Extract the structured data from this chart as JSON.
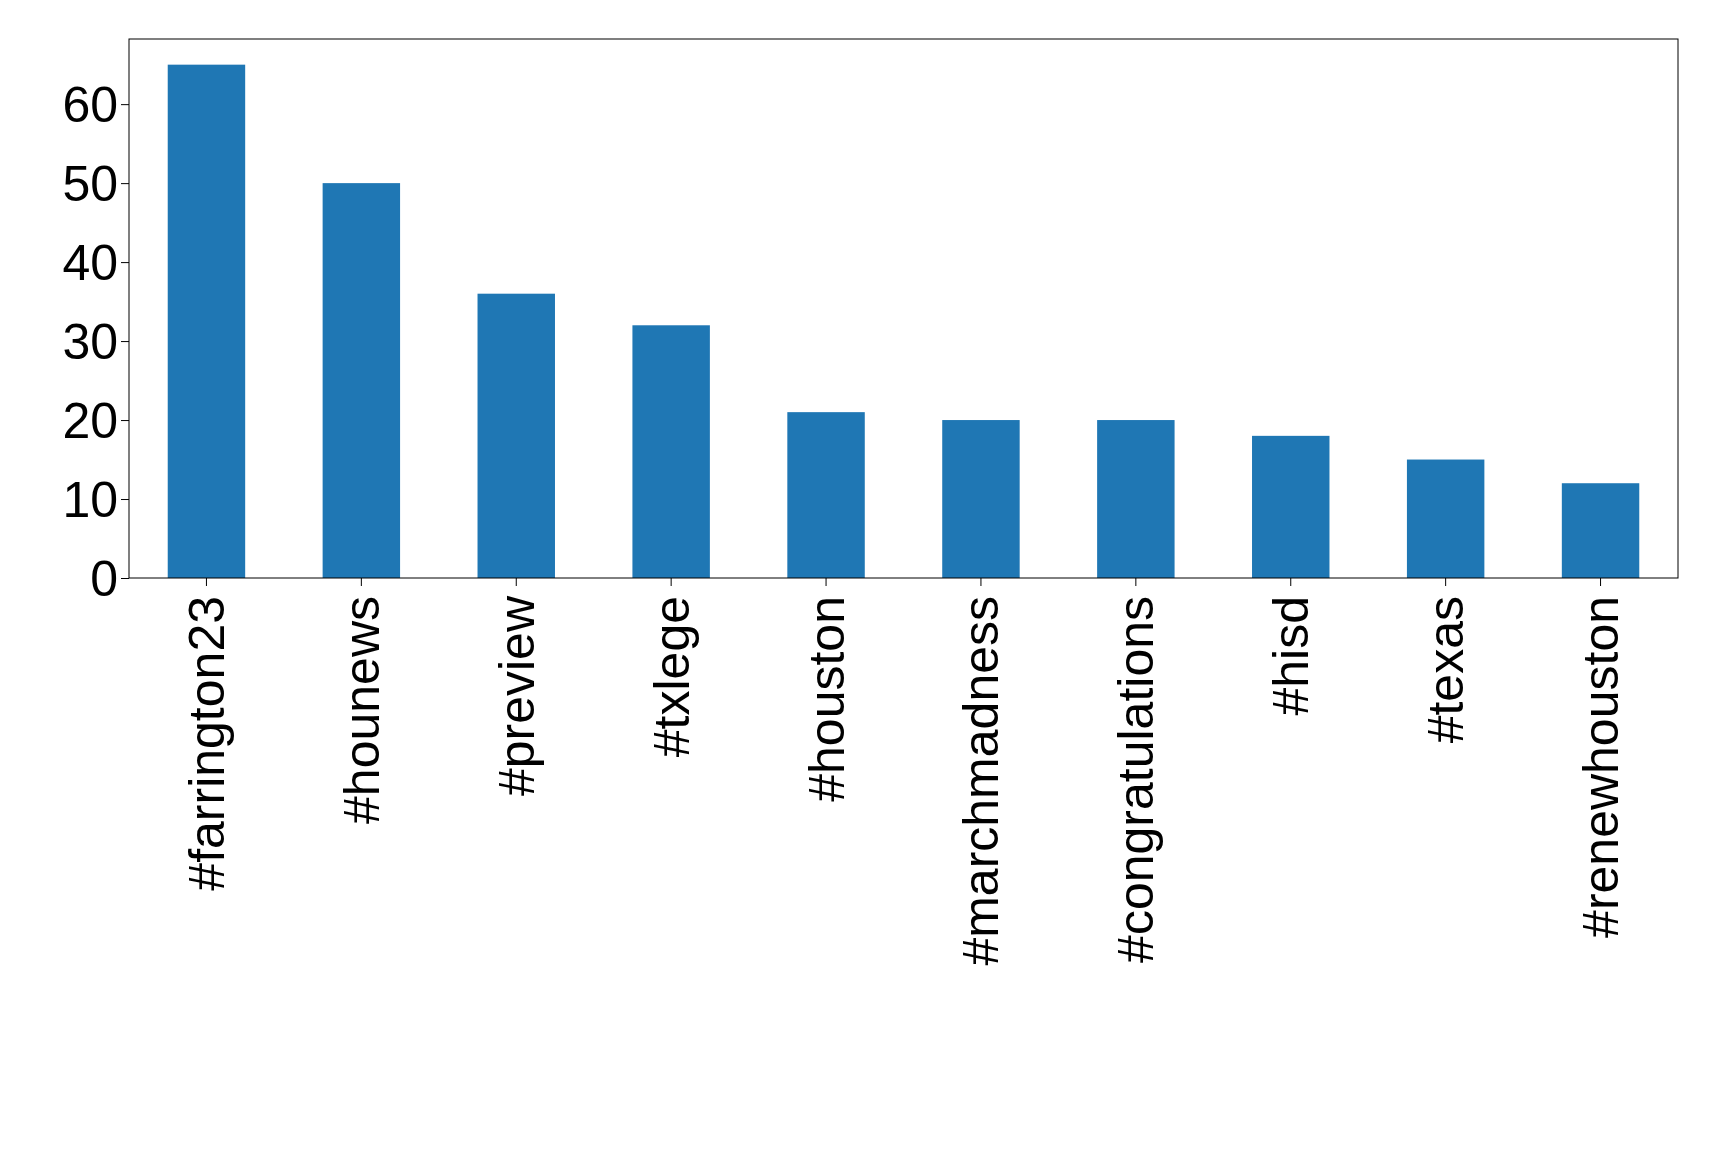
{
  "chart_data": {
    "type": "bar",
    "categories": [
      "#farrington23",
      "#hounews",
      "#preview",
      "#txlege",
      "#houston",
      "#marchmadness",
      "#congratulations",
      "#hisd",
      "#texas",
      "#renewhouston"
    ],
    "values": [
      65,
      50,
      36,
      32,
      21,
      20,
      20,
      18,
      15,
      12
    ],
    "color": "#1f77b4",
    "ylim": [
      0,
      68.25
    ],
    "yticks": [
      0,
      10,
      20,
      30,
      40,
      50,
      60
    ],
    "grid": false
  }
}
